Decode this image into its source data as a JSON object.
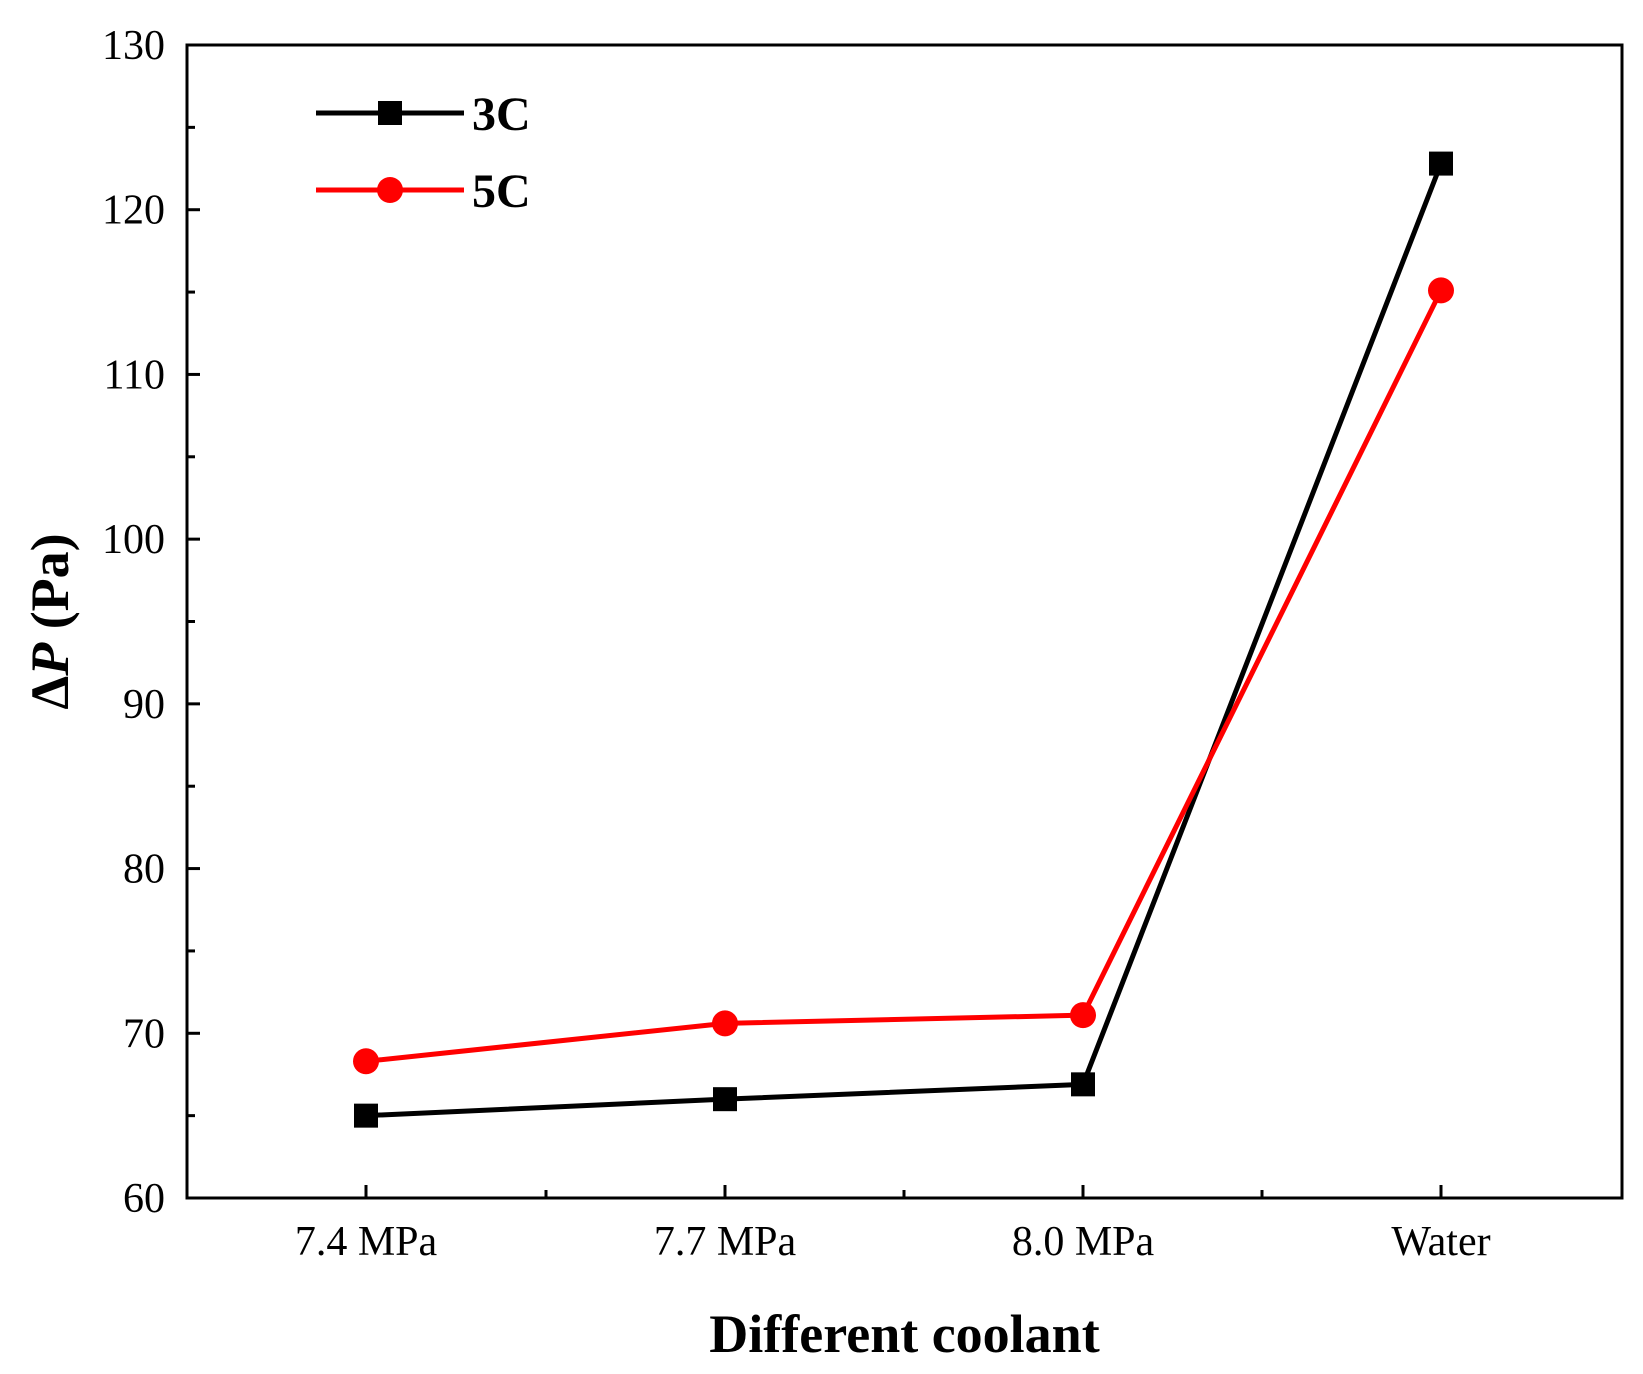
{
  "chart_data": {
    "type": "line",
    "title": "",
    "xlabel": "Different coolant",
    "ylabel_prefix": "Δ",
    "ylabel_var": "P",
    "ylabel_unit": " (Pa)",
    "categories": [
      "7.4 MPa",
      "7.7 MPa",
      "8.0 MPa",
      "Water"
    ],
    "ylim": [
      60,
      130
    ],
    "yticks": [
      60,
      70,
      80,
      90,
      100,
      110,
      120,
      130
    ],
    "yticks_minor": [
      65,
      75,
      85,
      95,
      105,
      115,
      125
    ],
    "grid": false,
    "legend_position": "top-left",
    "series": [
      {
        "name": "3C",
        "color": "#000000",
        "marker": "square",
        "values": [
          65.0,
          66.0,
          66.9,
          122.8
        ]
      },
      {
        "name": "5C",
        "color": "#ff0000",
        "marker": "circle",
        "values": [
          68.3,
          70.6,
          71.1,
          115.1
        ]
      }
    ]
  }
}
